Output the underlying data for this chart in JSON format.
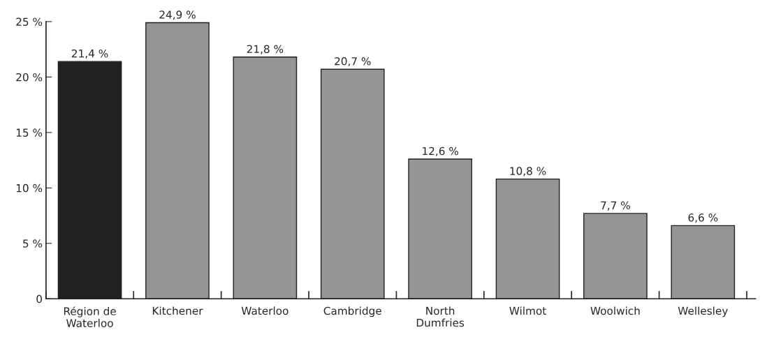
{
  "chart_data": {
    "type": "bar",
    "categories": [
      "Région de\nWaterloo",
      "Kitchener",
      "Waterloo",
      "Cambridge",
      "North\nDumfries",
      "Wilmot",
      "Woolwich",
      "Wellesley"
    ],
    "values": [
      21.4,
      24.9,
      21.8,
      20.7,
      12.6,
      10.8,
      7.7,
      6.6
    ],
    "colors": [
      "#231f20",
      "#939598",
      "#939598",
      "#939598",
      "#939598",
      "#939598",
      "#939598",
      "#939598"
    ],
    "value_labels": [
      "21,4 %",
      "24,9 %",
      "21,8 %",
      "20,7 %",
      "12,6 %",
      "10,8 %",
      "7,7 %",
      "6,6 %"
    ],
    "ylim": [
      0,
      25
    ],
    "yticks": [
      0,
      {
        "value": 5,
        "label": "5 %"
      },
      {
        "value": 10,
        "label": "10 %"
      },
      {
        "value": 15,
        "label": "15 %"
      },
      {
        "value": 20,
        "label": "20 %"
      },
      {
        "value": 25,
        "label": "25 %"
      }
    ],
    "grid": false,
    "legend": false
  }
}
